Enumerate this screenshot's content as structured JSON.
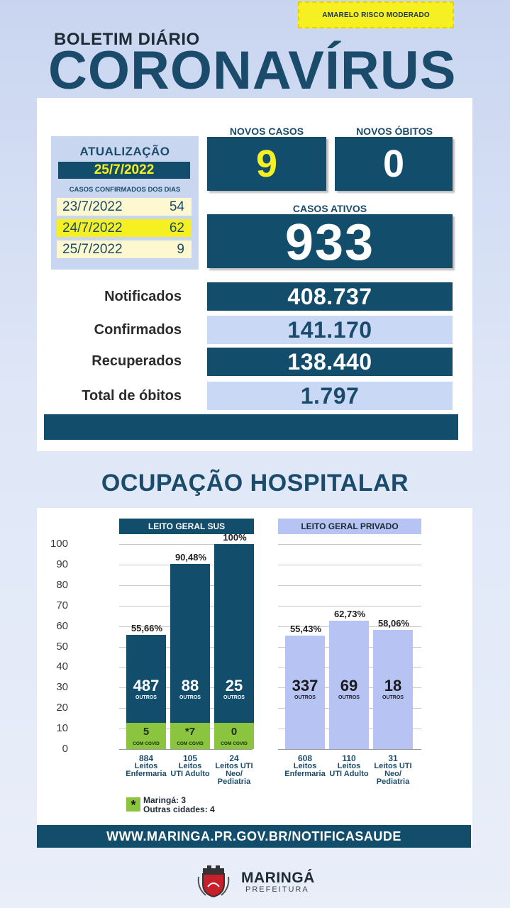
{
  "risk_badge": "AMARELO RISCO MODERADO",
  "header": {
    "subtitle": "BOLETIM DIÁRIO",
    "title": "CORONAVÍRUS"
  },
  "update": {
    "title": "ATUALIZAÇÃO",
    "date": "25/7/2022",
    "subtitle": "CASOS CONFIRMADOS DOS DIAS",
    "rows": [
      {
        "date": "23/7/2022",
        "count": "54"
      },
      {
        "date": "24/7/2022",
        "count": "62"
      },
      {
        "date": "25/7/2022",
        "count": "9"
      }
    ]
  },
  "novos_casos": {
    "label": "NOVOS CASOS",
    "value": "9"
  },
  "novos_obitos": {
    "label": "NOVOS ÓBITOS",
    "value": "0"
  },
  "casos_ativos": {
    "label": "CASOS ATIVOS",
    "value": "933"
  },
  "stats": [
    {
      "label": "Notificados",
      "value": "408.737"
    },
    {
      "label": "Confirmados",
      "value": "141.170"
    },
    {
      "label": "Recuperados",
      "value": "138.440"
    },
    {
      "label": "Total de óbitos",
      "value": "1.797"
    }
  ],
  "section_title": "OCUPAÇÃO HOSPITALAR",
  "chart_data": {
    "type": "bar",
    "ylim": [
      0,
      100
    ],
    "yticks": [
      "100",
      "90",
      "80",
      "70",
      "60",
      "50",
      "40",
      "30",
      "20",
      "10",
      "0"
    ],
    "groups": [
      {
        "name": "LEITO GERAL SUS",
        "bars": [
          {
            "pct": 55.66,
            "pct_label": "55,66%",
            "outros": "487",
            "outros_label": "OUTROS",
            "covid": "5",
            "covid_label": "COM COVID",
            "total": "884",
            "cap1": "Leitos",
            "cap2": "Enfermaria",
            "cap3": ""
          },
          {
            "pct": 90.48,
            "pct_label": "90,48%",
            "outros": "88",
            "outros_label": "OUTROS",
            "covid": "*7",
            "covid_label": "COM COVID",
            "total": "105",
            "cap1": "Leitos",
            "cap2": "UTI Adulto",
            "cap3": ""
          },
          {
            "pct": 100,
            "pct_label": "100%",
            "outros": "25",
            "outros_label": "OUTROS",
            "covid": "0",
            "covid_label": "COM COVID",
            "total": "24",
            "cap1": "Leitos UTI",
            "cap2": "Neo/",
            "cap3": "Pediatria"
          }
        ]
      },
      {
        "name": "LEITO GERAL PRIVADO",
        "bars": [
          {
            "pct": 55.43,
            "pct_label": "55,43%",
            "outros": "337",
            "outros_label": "OUTROS",
            "total": "608",
            "cap1": "Leitos",
            "cap2": "Enfermaria",
            "cap3": ""
          },
          {
            "pct": 62.73,
            "pct_label": "62,73%",
            "outros": "69",
            "outros_label": "OUTROS",
            "total": "110",
            "cap1": "Leitos",
            "cap2": "UTI Adulto",
            "cap3": ""
          },
          {
            "pct": 58.06,
            "pct_label": "58,06%",
            "outros": "18",
            "outros_label": "OUTROS",
            "total": "31",
            "cap1": "Leitos UTI",
            "cap2": "Neo/",
            "cap3": "Pediatria"
          }
        ]
      }
    ],
    "colors": {
      "sus": "#134d6c",
      "privado": "#b7c3f3",
      "covid": "#8bc43f"
    }
  },
  "legend": {
    "mark": "*",
    "line1": "Maringá: 3",
    "line2": "Outras cidades: 4"
  },
  "url": "WWW.MARINGA.PR.GOV.BR/NOTIFICASAUDE",
  "logo": {
    "name": "MARINGÁ",
    "sub": "PREFEITURA"
  }
}
